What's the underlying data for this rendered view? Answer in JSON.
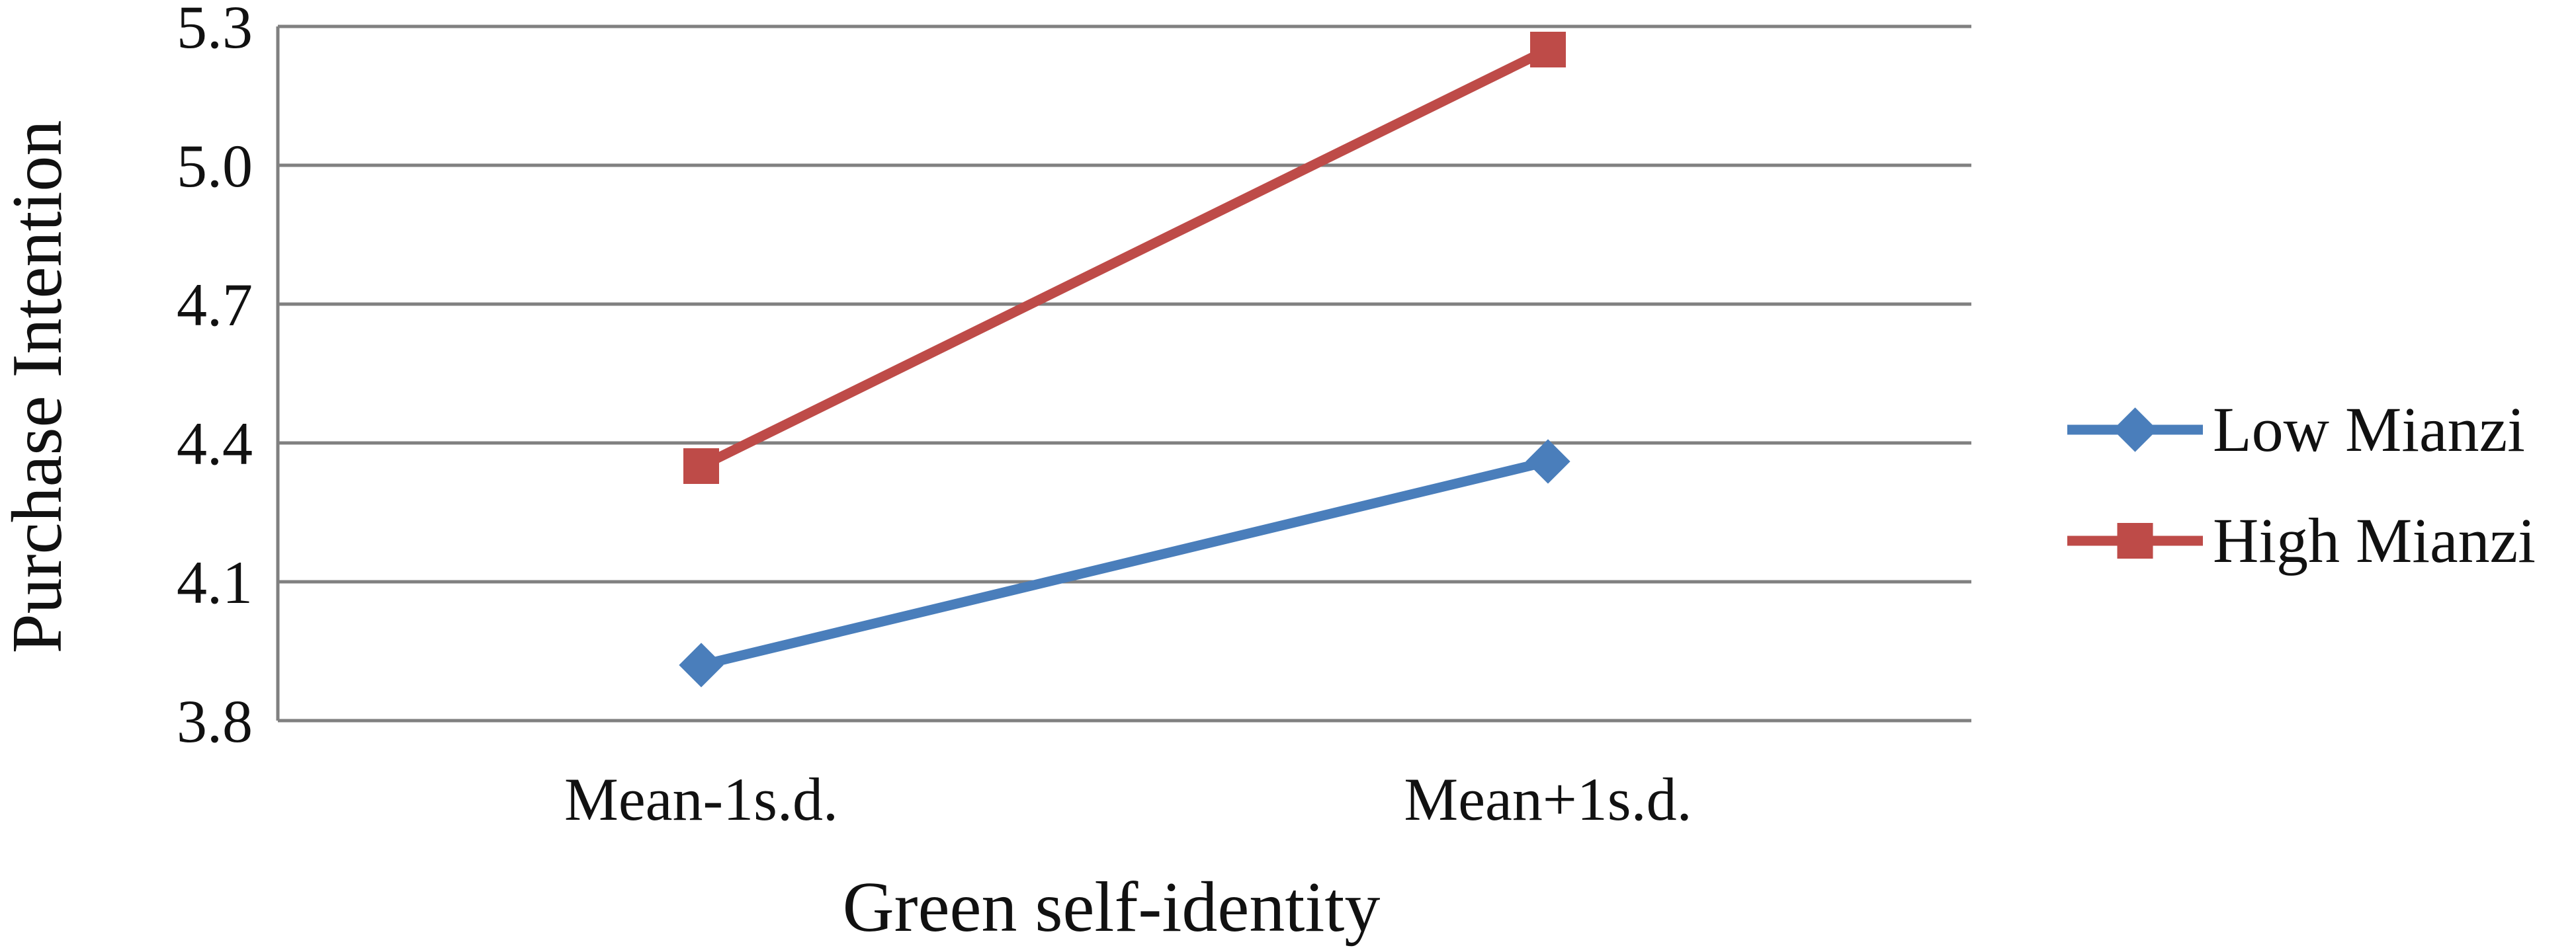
{
  "chart_data": {
    "type": "line",
    "title": "",
    "xlabel": "Green self-identity",
    "ylabel": "Purchase Intention",
    "categories": [
      "Mean-1s.d.",
      "Mean+1s.d."
    ],
    "ylim": [
      3.8,
      5.3
    ],
    "yticks": [
      "3.8",
      "4.1",
      "4.4",
      "4.7",
      "5.0",
      "5.3"
    ],
    "grid": true,
    "legend_position": "right",
    "series": [
      {
        "name": "Low Mianzi",
        "values": [
          3.92,
          4.36
        ],
        "color": "#4a7ebb",
        "marker": "diamond"
      },
      {
        "name": "High Mianzi",
        "values": [
          4.35,
          5.25
        ],
        "color": "#be4b48",
        "marker": "square"
      }
    ],
    "colors": {
      "gridline": "#808080",
      "text": "#111111"
    }
  }
}
